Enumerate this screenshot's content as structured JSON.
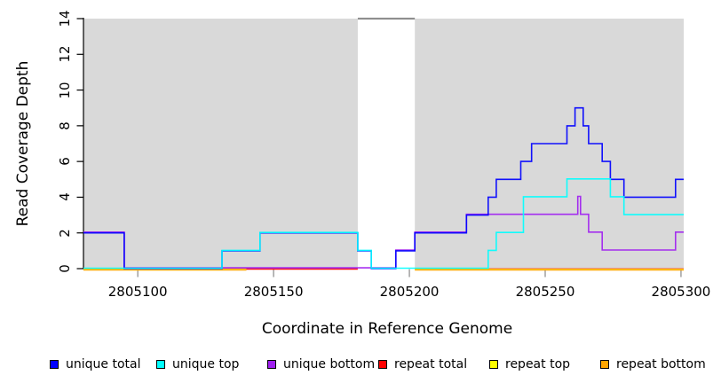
{
  "chart_data": {
    "type": "line",
    "subtype": "step",
    "title": "",
    "xlabel": "Coordinate in Reference Genome",
    "ylabel": "Read Coverage Depth",
    "xlim": [
      2805080,
      2805301
    ],
    "ylim": [
      0,
      14
    ],
    "grid": false,
    "legend_position": "bottom",
    "x_ticks": [
      2805100,
      2805150,
      2805200,
      2805250,
      2805300
    ],
    "x_tick_labels": [
      "2805100",
      "2805150",
      "2805200",
      "2805250",
      "2805300"
    ],
    "y_ticks": [
      0,
      2,
      4,
      6,
      8,
      10,
      12,
      14
    ],
    "y_tick_labels": [
      "0",
      "2",
      "4",
      "6",
      "8",
      "10",
      "12",
      "14"
    ],
    "axis_color": "#000000",
    "x_tick_color": "#999999",
    "shaded_regions": [
      {
        "x0": 2805080,
        "x1": 2805181,
        "color": "#d9d9d9"
      },
      {
        "x0": 2805202,
        "x1": 2805301,
        "color": "#d9d9d9"
      }
    ],
    "gap_marker": {
      "x0": 2805181,
      "x1": 2805202,
      "y": 14,
      "color": "#8f8f8f"
    },
    "series": [
      {
        "name": "unique total",
        "color": "#0000ff",
        "segments": [
          {
            "x": [
              2805080,
              2805095,
              2805131,
              2805145,
              2805181,
              2805186,
              2805195,
              2805202,
              2805221,
              2805229,
              2805232,
              2805241,
              2805245,
              2805258,
              2805261,
              2805264,
              2805266,
              2805271,
              2805274,
              2805279,
              2805298,
              2805301
            ],
            "v": [
              2,
              0,
              1,
              2,
              1,
              0,
              1,
              2,
              3,
              4,
              5,
              6,
              7,
              8,
              9,
              8,
              7,
              6,
              5,
              4,
              5
            ]
          }
        ]
      },
      {
        "name": "unique top",
        "color": "#00ffff",
        "segments": [
          {
            "x": [
              2805080,
              2805131,
              2805145,
              2805181,
              2805186,
              2805229,
              2805232,
              2805242,
              2805258,
              2805274,
              2805279,
              2805301
            ],
            "v": [
              0,
              1,
              2,
              1,
              0,
              1,
              2,
              4,
              5,
              4,
              3
            ]
          }
        ]
      },
      {
        "name": "unique bottom",
        "color": "#a020f0",
        "segments": [
          {
            "x": [
              2805080,
              2805095,
              2805195,
              2805202,
              2805221,
              2805262,
              2805263,
              2805266,
              2805271,
              2805298,
              2805301
            ],
            "v": [
              2,
              0,
              1,
              2,
              3,
              4,
              3,
              2,
              1,
              2
            ]
          }
        ]
      },
      {
        "name": "repeat total",
        "color": "#ff0000",
        "segments": [
          {
            "x": [
              2805080,
              2805181
            ],
            "v": [
              0
            ]
          },
          {
            "x": [
              2805202,
              2805301
            ],
            "v": [
              0
            ]
          }
        ]
      },
      {
        "name": "repeat top",
        "color": "#ffff00",
        "segments": [
          {
            "x": [
              2805080,
              2805140
            ],
            "v": [
              0
            ]
          },
          {
            "x": [
              2805202,
              2805301
            ],
            "v": [
              0
            ]
          }
        ]
      },
      {
        "name": "repeat bottom",
        "color": "#ffa500",
        "segments": [
          {
            "x": [
              2805080,
              2805140
            ],
            "v": [
              0
            ]
          },
          {
            "x": [
              2805202,
              2805301
            ],
            "v": [
              0
            ]
          }
        ]
      }
    ]
  }
}
